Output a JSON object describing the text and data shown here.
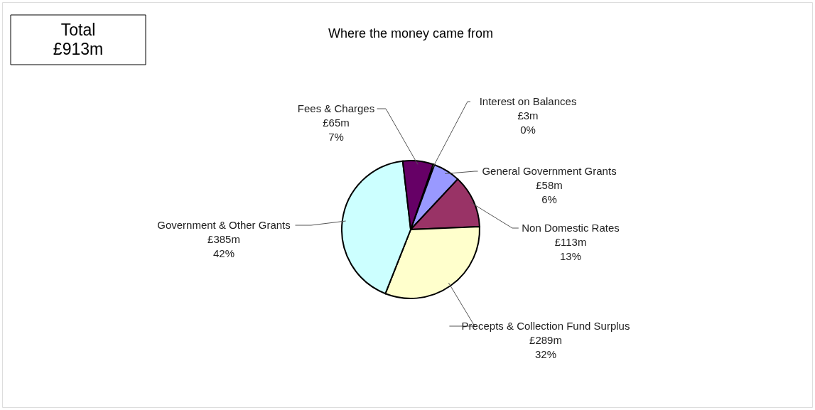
{
  "chart_data": {
    "type": "pie",
    "title": "Where the money came from",
    "categories": [
      "Interest on Balances",
      "General Government Grants",
      "Non Domestic Rates",
      "Precepts & Collection Fund Surplus",
      "Government & Other Grants",
      "Fees & Charges"
    ],
    "values": [
      3,
      58,
      113,
      289,
      385,
      65
    ],
    "colors": [
      "#000000",
      "#9999ff",
      "#993366",
      "#ffffcc",
      "#ccffff",
      "#660066"
    ],
    "value_labels": [
      "£3m",
      "£58m",
      "£113m",
      "£289m",
      "£385m",
      "£65m"
    ],
    "annotations": [
      "Total\n£913m",
      {
        "text": "0%",
        "x": "Interest on Balances"
      },
      {
        "text": "6%",
        "x": "General Government Grants"
      },
      {
        "text": "13%",
        "x": "Non Domestic Rates"
      },
      {
        "text": "32%",
        "x": "Precepts & Collection Fund Surplus"
      },
      {
        "text": "42%",
        "x": "Government & Other Grants"
      },
      {
        "text": "7%",
        "x": "Fees & Charges"
      }
    ]
  }
}
